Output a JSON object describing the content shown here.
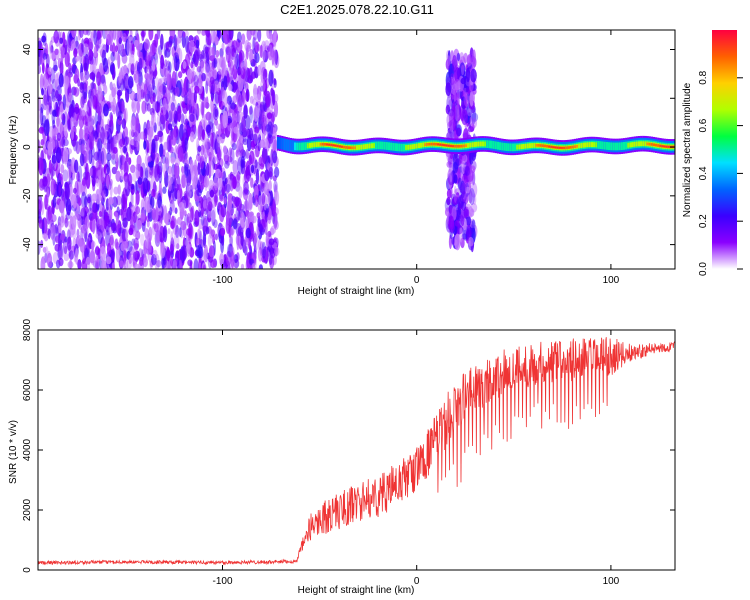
{
  "title": "C2E1.2025.078.22.10.G11",
  "colors": {
    "snr_line": "#ef3434",
    "colormap": [
      "#ffffff",
      "#8a00ff",
      "#3a00ff",
      "#0064ff",
      "#00e0ff",
      "#00ff40",
      "#b0ff00",
      "#ffd000",
      "#ff6000",
      "#ff0040"
    ]
  },
  "chart_data": [
    {
      "type": "heatmap",
      "xlabel": "Height of straight line (km)",
      "ylabel": "Frequency (Hz)",
      "xlim": [
        -195,
        133
      ],
      "ylim": [
        -50,
        48
      ],
      "x_ticks": [
        -100,
        0,
        100
      ],
      "x_tick_labels": [
        "-100",
        "0",
        "100"
      ],
      "y_ticks": [
        -40,
        -20,
        0,
        20,
        40
      ],
      "y_tick_labels": [
        "-40",
        "-20",
        "0",
        "20",
        "40"
      ],
      "grid": false,
      "colorbar": {
        "label": "Normalized spectral amplitude",
        "range": [
          0,
          1
        ],
        "ticks": [
          0.0,
          0.2,
          0.4,
          0.6,
          0.8
        ],
        "tick_labels": [
          "0.0",
          "0.2",
          "0.4",
          "0.6",
          "0.8"
        ]
      },
      "regions": [
        {
          "kind": "broadband_noise",
          "x_range": [
            -195,
            -72
          ],
          "freq_range": [
            -50,
            48
          ],
          "level": 0.12
        },
        {
          "kind": "signal_band",
          "x_range": [
            -72,
            133
          ],
          "freq_center": 0.5,
          "freq_halfwidth": 2.5,
          "level": 0.95
        },
        {
          "kind": "noise_burst",
          "x_range": [
            16,
            30
          ],
          "freq_range": [
            -40,
            38
          ],
          "level": 0.25
        }
      ]
    },
    {
      "type": "line",
      "xlabel": "Height of straight line (km)",
      "ylabel": "SNR (10 * v/v)",
      "xlim": [
        -195,
        133
      ],
      "ylim": [
        0,
        8000
      ],
      "x_ticks": [
        -100,
        0,
        100
      ],
      "x_tick_labels": [
        "-100",
        "0",
        "100"
      ],
      "y_ticks": [
        0,
        2000,
        4000,
        6000,
        8000
      ],
      "y_tick_labels": [
        "0",
        "2000",
        "4000",
        "6000",
        "8000"
      ],
      "grid": false,
      "series": [
        {
          "x": [
            -195,
            -150,
            -100,
            -75,
            -62,
            -55,
            -50,
            -40,
            -30,
            -20,
            -10,
            0,
            10,
            20,
            30,
            40,
            50,
            60,
            70,
            80,
            90,
            100,
            110,
            120,
            133
          ],
          "y": [
            250,
            280,
            260,
            280,
            300,
            1500,
            1800,
            2100,
            2400,
            2600,
            3000,
            3500,
            4500,
            5700,
            6200,
            6600,
            6900,
            7000,
            7100,
            7150,
            7200,
            7250,
            7300,
            7400,
            7500
          ],
          "spread": [
            120,
            110,
            120,
            120,
            130,
            900,
            1100,
            1300,
            1300,
            1400,
            1500,
            1500,
            1700,
            1800,
            1700,
            1600,
            1500,
            1500,
            1500,
            1500,
            1400,
            1300,
            600,
            400,
            300
          ]
        }
      ]
    }
  ]
}
